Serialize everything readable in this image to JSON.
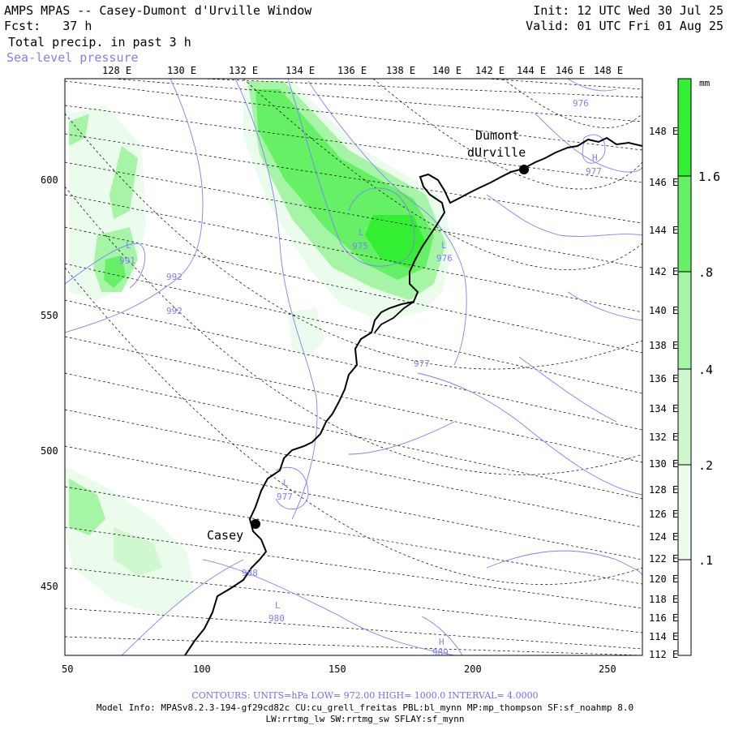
{
  "header": {
    "title": "AMPS MPAS -- Casey-Dumont d'Urville Window",
    "fcst": "Fcst:   37 h",
    "init": "Init: 12 UTC Wed 30 Jul 25",
    "valid": "Valid: 01 UTC Fri 01 Aug 25",
    "field": "Total precip. in past 3 h",
    "contour_field": "Sea-level pressure"
  },
  "top_longitudes": [
    "128 E",
    "130 E",
    "132 E",
    "134 E",
    "136 E",
    "138 E",
    "140 E",
    "142 E",
    "144 E",
    "146 E",
    "148 E"
  ],
  "right_longitudes": [
    "148 E",
    "146 E",
    "144 E",
    "142 E",
    "140 E",
    "138 E",
    "136 E",
    "134 E",
    "132 E",
    "130 E",
    "128 E",
    "126 E",
    "124 E",
    "122 E",
    "120 E",
    "118 E",
    "116 E",
    "114 E",
    "112 E"
  ],
  "x_axis": [
    "50",
    "100",
    "150",
    "200",
    "250"
  ],
  "y_axis": [
    "600",
    "550",
    "500",
    "450"
  ],
  "colorbar": {
    "unit": "mm",
    "labels": [
      "1.6",
      ".8",
      ".4",
      ".2",
      ".1"
    ],
    "colors": {
      "c1": "#33ee33",
      "c2": "#66f066",
      "c3": "#a6f5a6",
      "c4": "#cff8cf",
      "c5": "#ecfcec"
    }
  },
  "stations": [
    {
      "name": "Dumont",
      "name2": "dUrville"
    },
    {
      "name": "Casey"
    }
  ],
  "pressure_labels": [
    {
      "mark": "L",
      "value": "991"
    },
    {
      "mark": "",
      "value": "992"
    },
    {
      "mark": "",
      "value": "992"
    },
    {
      "mark": "L",
      "value": "975"
    },
    {
      "mark": "L",
      "value": "976"
    },
    {
      "mark": "",
      "value": "976"
    },
    {
      "mark": "H",
      "value": "977"
    },
    {
      "mark": "",
      "value": "977"
    },
    {
      "mark": "L",
      "value": "977"
    },
    {
      "mark": "",
      "value": "988"
    },
    {
      "mark": "L",
      "value": "980"
    },
    {
      "mark": "H",
      "value": "989"
    }
  ],
  "footer": {
    "contours": "CONTOURS:  UNITS=hPa  LOW=  972.00      HIGH=  1000.0      INTERVAL=   4.0000",
    "model_info": "Model Info: MPASv8.2.3-194-gf29cd82c CU:cu_grell_freitas PBL:bl_mynn MP:mp_thompson SF:sf_noahmp 8.0",
    "model_info2": "LW:rrtmg_lw SW:rrtmg_sw SFLAY:sf_mynn"
  },
  "colors": {
    "contour": "#7f7fff",
    "footer_contour": "#6c6cff"
  }
}
